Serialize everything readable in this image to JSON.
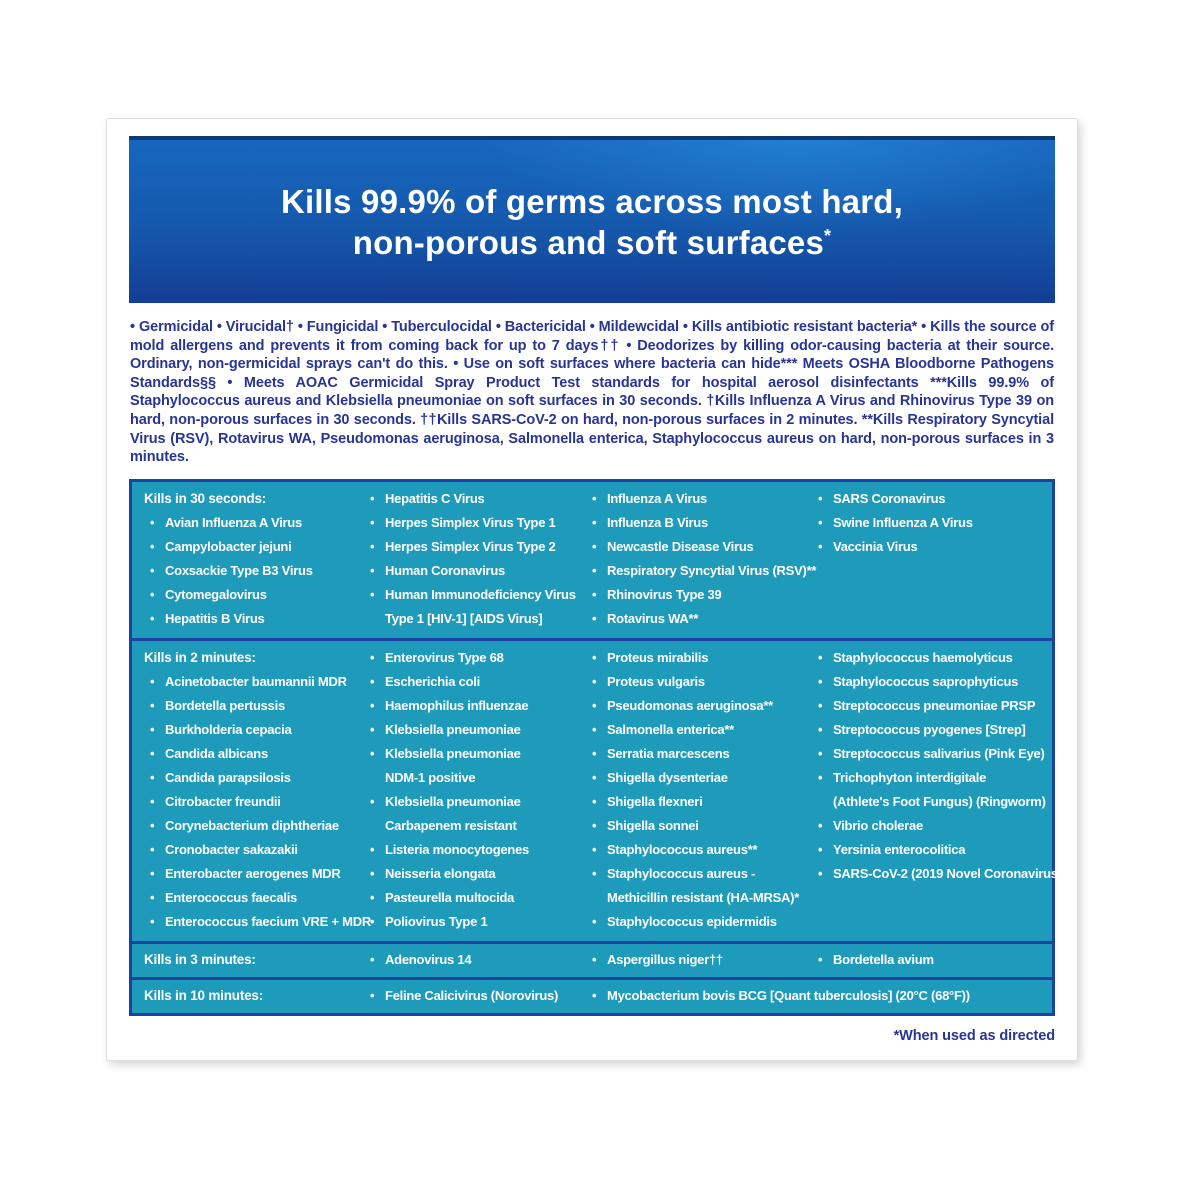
{
  "header": {
    "line1": "Kills 99.9% of germs across most hard,",
    "line2": "non-porous and soft surfaces",
    "sup": "*"
  },
  "intro": {
    "text": "• Germicidal • Virucidal† • Fungicidal • Tuberculocidal • Bactericidal • Mildewcidal • Kills antibiotic resistant bacteria* • Kills the source of mold allergens and prevents it from coming back for up to 7 days†† • Deodorizes by killing odor-causing bacteria at their source. Ordinary, non-germicidal sprays can't do this. • Use on soft surfaces where bacteria can hide*** Meets OSHA Bloodborne Pathogens Standards§§ • Meets AOAC Germicidal Spray Product Test standards for hospital aerosol disinfectants ***Kills 99.9% of Staphylococcus aureus and Klebsiella pneumoniae on soft surfaces in 30 seconds. †Kills Influenza A Virus and Rhinovirus Type 39 on hard, non-porous surfaces in 30 seconds. ††Kills SARS-CoV-2 on hard, non-porous surfaces in 2 minutes. **Kills Respiratory Syncytial Virus (RSV), Rotavirus WA, Pseudomonas aeruginosa, Salmonella enterica, Staphylococcus aureus on hard, non-porous surfaces in 3 minutes."
  },
  "table": {
    "bullet": "•",
    "sections": [
      {
        "label": "Kills in 30 seconds:",
        "columns": [
          [
            "Avian Influenza A Virus",
            "Campylobacter jejuni",
            "Coxsackie Type B3 Virus",
            "Cytomegalovirus",
            "Hepatitis B Virus"
          ],
          [
            "Hepatitis C Virus",
            "Herpes Simplex Virus Type 1",
            "Herpes Simplex Virus Type 2",
            "Human Coronavirus",
            "Human Immunodeficiency Virus\nType 1 [HIV-1] [AIDS Virus]"
          ],
          [
            "Influenza A Virus",
            "Influenza B Virus",
            "Newcastle Disease Virus",
            "Respiratory Syncytial Virus (RSV)**",
            "Rhinovirus Type 39",
            "Rotavirus WA**"
          ],
          [
            "SARS Coronavirus",
            "Swine Influenza A Virus",
            "Vaccinia Virus"
          ]
        ]
      },
      {
        "label": "Kills in 2 minutes:",
        "columns": [
          [
            "Acinetobacter baumannii MDR",
            "Bordetella pertussis",
            "Burkholderia cepacia",
            "Candida albicans",
            "Candida parapsilosis",
            "Citrobacter freundii",
            "Corynebacterium diphtheriae",
            "Cronobacter sakazakii",
            "Enterobacter aerogenes MDR",
            "Enterococcus faecalis",
            "Enterococcus faecium VRE + MDR"
          ],
          [
            "Enterovirus Type 68",
            "Escherichia coli",
            "Haemophilus influenzae",
            "Klebsiella pneumoniae",
            "Klebsiella pneumoniae\nNDM-1 positive",
            "Klebsiella pneumoniae\nCarbapenem resistant",
            "Listeria monocytogenes",
            "Neisseria elongata",
            "Pasteurella multocida",
            "Poliovirus Type 1"
          ],
          [
            "Proteus mirabilis",
            "Proteus vulgaris",
            "Pseudomonas aeruginosa**",
            "Salmonella enterica**",
            "Serratia marcescens",
            "Shigella dysenteriae",
            "Shigella flexneri",
            "Shigella sonnei",
            "Staphylococcus aureus**",
            "Staphylococcus aureus -\nMethicillin resistant (HA-MRSA)*",
            "Staphylococcus epidermidis"
          ],
          [
            "Staphylococcus haemolyticus",
            "Staphylococcus saprophyticus",
            "Streptococcus pneumoniae PRSP",
            "Streptococcus pyogenes [Strep]",
            "Streptococcus salivarius (Pink Eye)",
            "Trichophyton interdigitale\n(Athlete's Foot Fungus) (Ringworm)",
            "Vibrio cholerae",
            "Yersinia enterocolitica",
            "SARS-CoV-2 (2019 Novel Coronavirus)"
          ]
        ]
      },
      {
        "label": "Kills in 3 minutes:",
        "columns": [
          [
            "Adenovirus 14"
          ],
          [
            "Aspergillus niger††"
          ],
          [
            "Bordetella avium"
          ]
        ]
      },
      {
        "label": "Kills in 10 minutes:",
        "columns": [
          [
            "Feline Calicivirus (Norovirus)"
          ],
          [
            "Mycobacterium bovis BCG [Quant tuberculosis] (20°C (68°F))"
          ]
        ]
      }
    ]
  },
  "footer": {
    "note": "*When used as directed"
  },
  "colors": {
    "header_gradient_top": "#1667bf",
    "header_gradient_bottom": "#133e95",
    "header_top_strip": "#0d3876",
    "table_teal": "#1e9aba",
    "table_border_blue": "#1a43a1",
    "text_indigo": "#283593",
    "text_white": "#ffffff"
  }
}
